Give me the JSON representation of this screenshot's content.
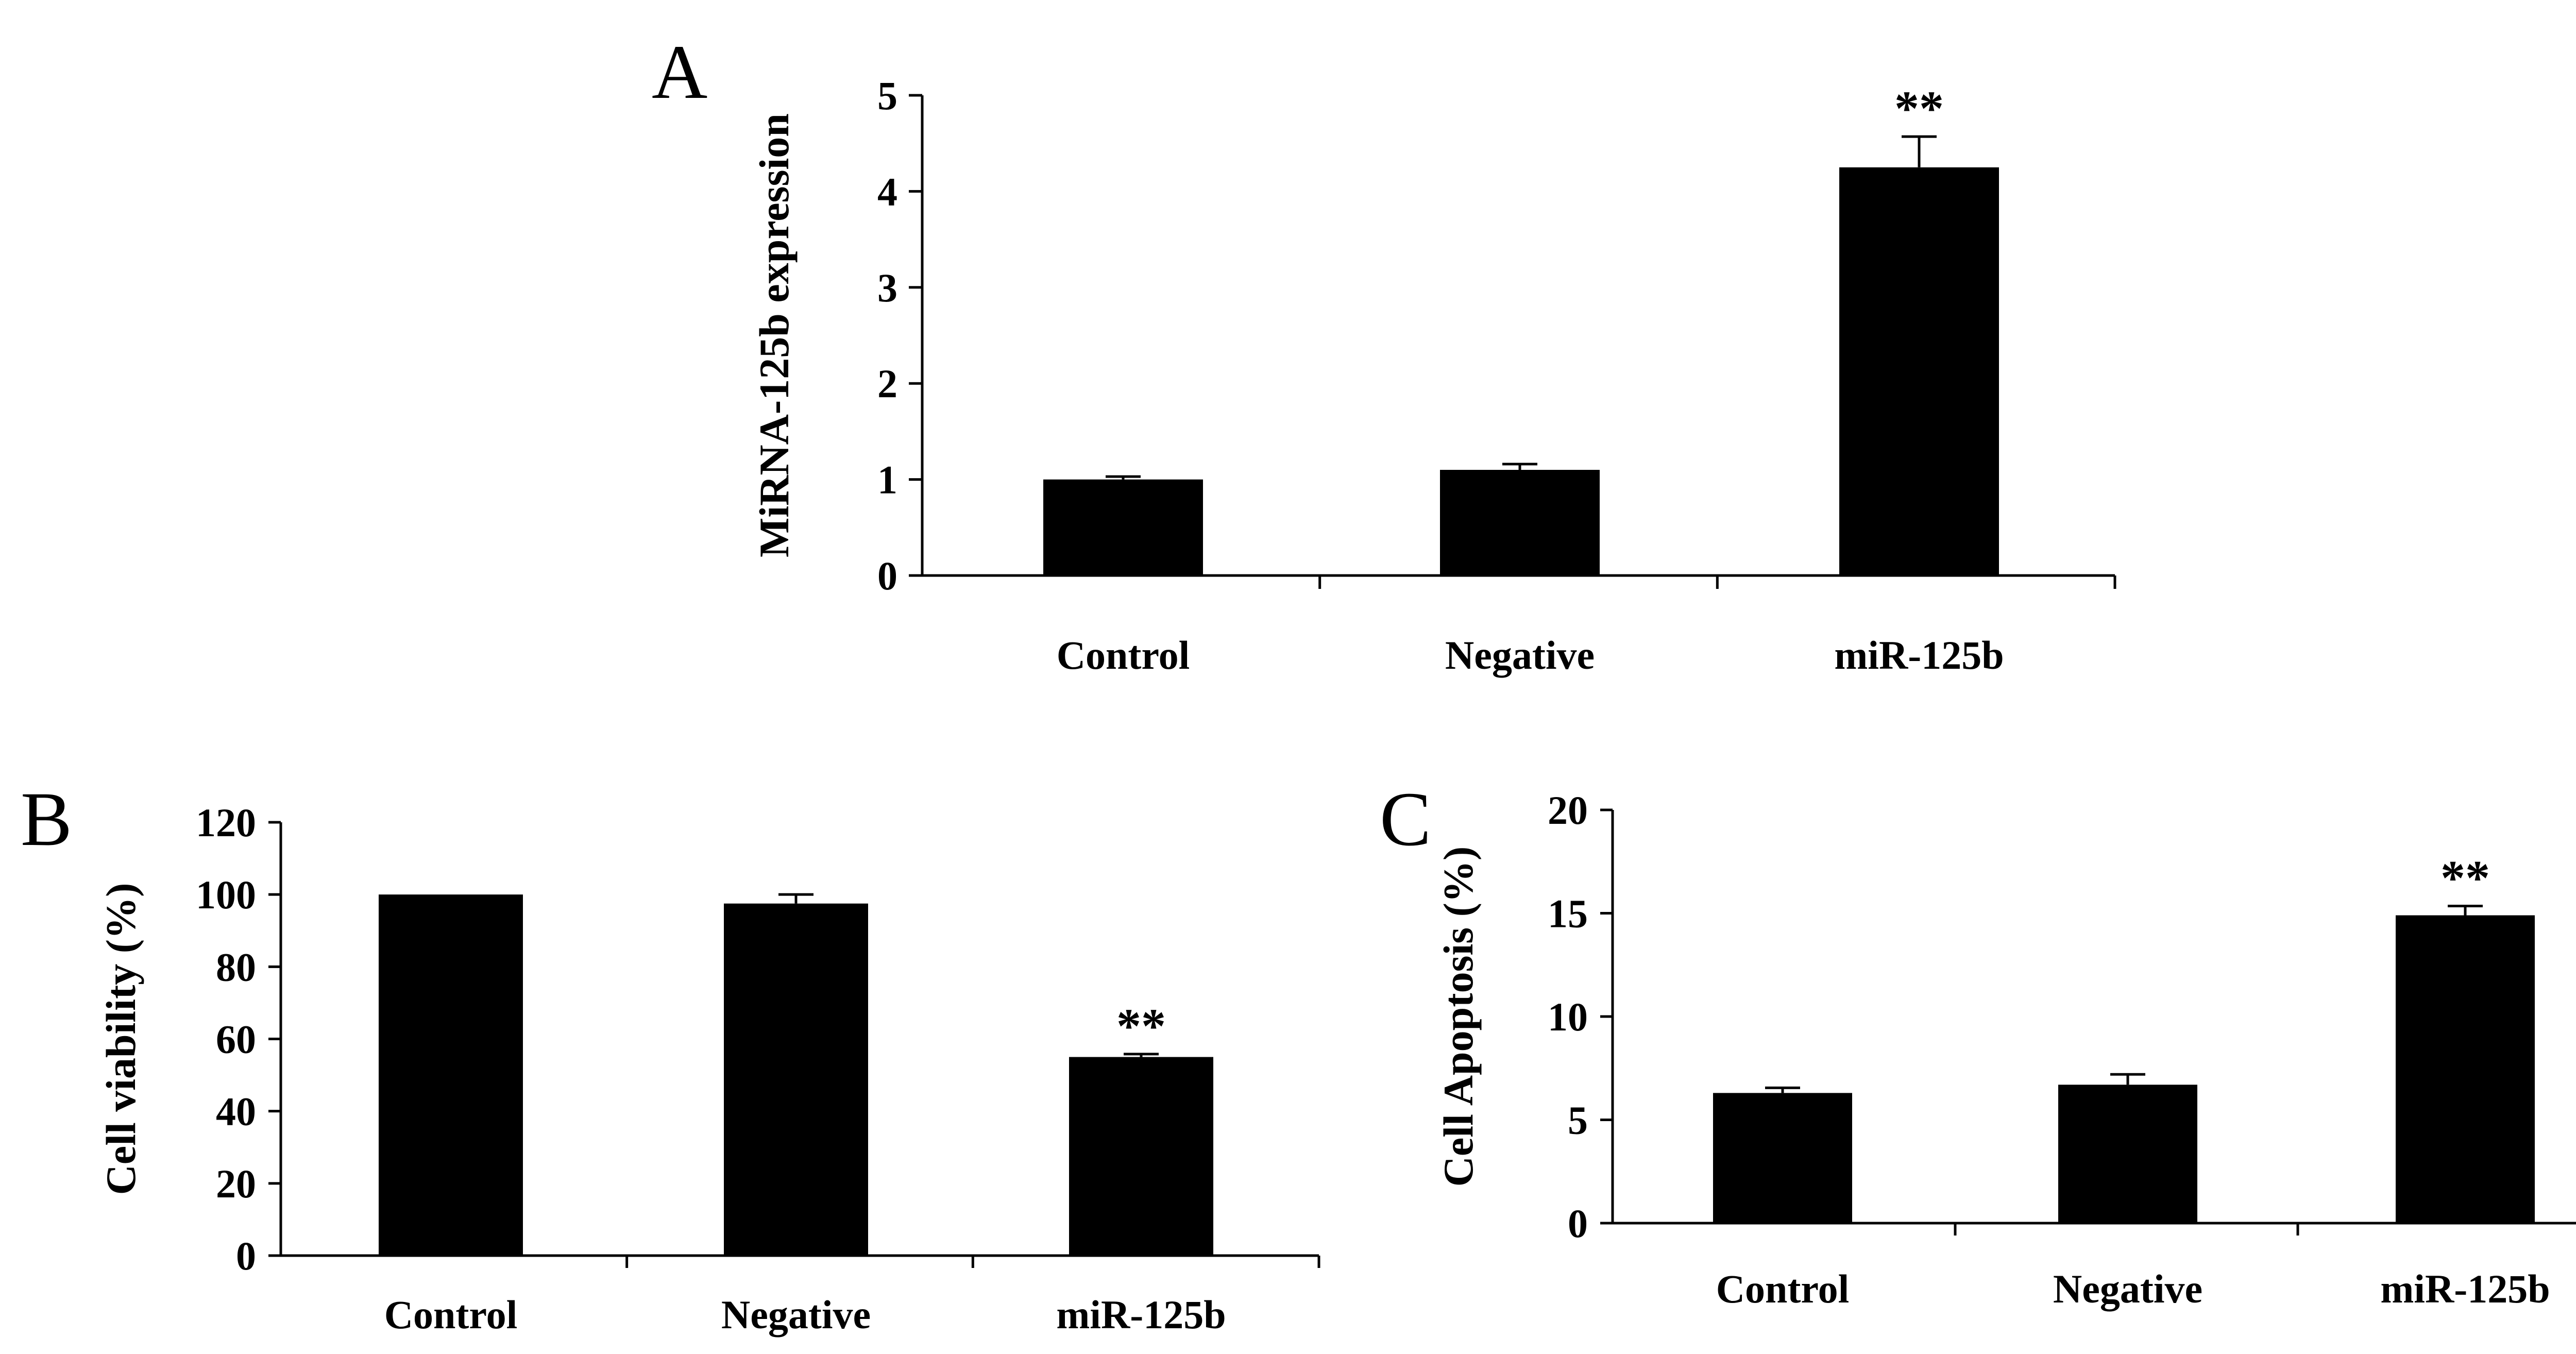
{
  "chart_data": [
    {
      "type": "bar",
      "panel": "A",
      "title": "",
      "xlabel": "",
      "ylabel": "MiRNA-125b expression",
      "ylim": [
        0,
        5
      ],
      "yticks": [
        0,
        1,
        2,
        3,
        4,
        5
      ],
      "categories": [
        "Control",
        "Negative",
        "miR-125b"
      ],
      "values": [
        1.0,
        1.1,
        4.25
      ],
      "errors": [
        0.03,
        0.06,
        0.32
      ],
      "annotations": [
        "",
        "",
        "**"
      ],
      "color": "#000000"
    },
    {
      "type": "bar",
      "panel": "B",
      "title": "",
      "xlabel": "",
      "ylabel": "Cell viability (%)",
      "ylim": [
        0,
        120
      ],
      "yticks": [
        0,
        20,
        40,
        60,
        80,
        100,
        120
      ],
      "categories": [
        "Control",
        "Negative",
        "miR-125b"
      ],
      "values": [
        100,
        97.5,
        55
      ],
      "errors": [
        0,
        2.5,
        0.8
      ],
      "annotations": [
        "",
        "",
        "**"
      ],
      "color": "#000000"
    },
    {
      "type": "bar",
      "panel": "C",
      "title": "",
      "xlabel": "",
      "ylabel": "Cell Apoptosis (%)",
      "ylim": [
        0,
        20
      ],
      "yticks": [
        0,
        5,
        10,
        15,
        20
      ],
      "categories": [
        "Control",
        "Negative",
        "miR-125b"
      ],
      "values": [
        6.3,
        6.7,
        14.9
      ],
      "errors": [
        0.25,
        0.5,
        0.45
      ],
      "annotations": [
        "",
        "",
        "**"
      ],
      "color": "#000000"
    }
  ]
}
